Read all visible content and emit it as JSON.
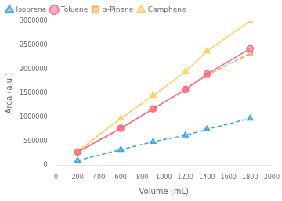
{
  "chart_data": {
    "type": "line",
    "x_label": "Volume (mL)",
    "y_label": "Area (a.u.)",
    "xlim": [
      0,
      2000
    ],
    "ylim": [
      0,
      3000000
    ],
    "xticks": [
      0,
      200,
      400,
      600,
      800,
      1000,
      1200,
      1400,
      1600,
      1800,
      2000
    ],
    "yticks": [
      0,
      500000,
      1000000,
      1500000,
      2000000,
      2500000,
      3000000
    ],
    "grid": false,
    "legend": "upper left",
    "series": [
      {
        "name": "Isoprene",
        "marker": "triangle",
        "line_style": "dashed",
        "x": [
          200,
          600,
          900,
          1200,
          1400,
          1800
        ],
        "values": [
          100000,
          325000,
          490000,
          625000,
          750000,
          975000
        ]
      },
      {
        "name": "Toluene",
        "marker": "circle",
        "line_style": "solid",
        "x": [
          200,
          600,
          900,
          1200,
          1400,
          1800
        ],
        "values": [
          275000,
          770000,
          1175000,
          1575000,
          1900000,
          2425000
        ]
      },
      {
        "name": "α-Pinene",
        "marker": "square",
        "line_style": "dashed",
        "x": [
          200,
          600,
          900,
          1200,
          1400,
          1800
        ],
        "values": [
          275000,
          770000,
          1175000,
          1575000,
          1875000,
          2325000
        ]
      },
      {
        "name": "Camphene",
        "marker": "triangle",
        "line_style": "solid",
        "x": [
          200,
          600,
          900,
          1200,
          1400,
          1800
        ],
        "values": [
          290000,
          975000,
          1450000,
          1950000,
          2375000,
          3000000
        ]
      }
    ]
  }
}
